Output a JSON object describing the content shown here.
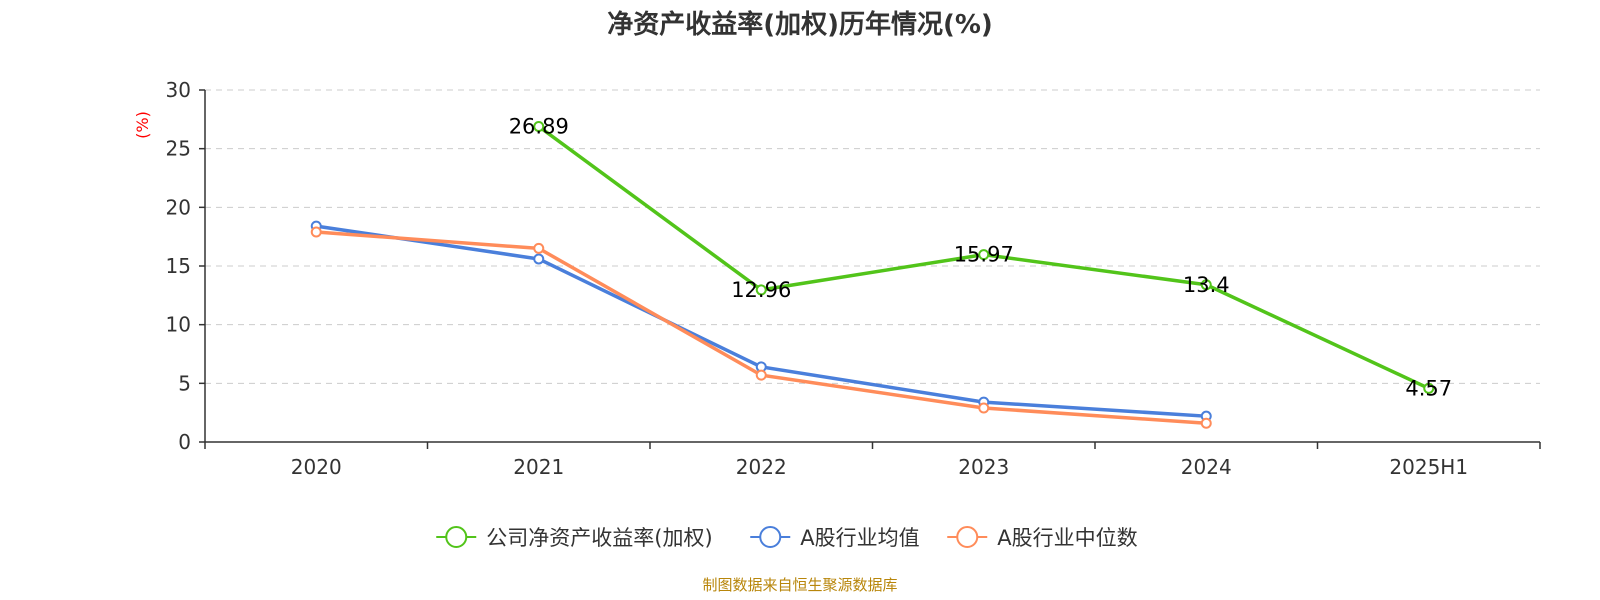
{
  "chart_data": {
    "type": "line",
    "title": "净资产收益率(加权)历年情况(%)",
    "ylabel": "(%)",
    "xlabel": "",
    "categories": [
      "2020",
      "2021",
      "2022",
      "2023",
      "2024",
      "2025H1"
    ],
    "ylim": [
      0,
      30
    ],
    "yticks": [
      0,
      5,
      10,
      15,
      20,
      25,
      30
    ],
    "grid": true,
    "legend_position": "bottom",
    "series": [
      {
        "name": "公司净资产收益率(加权)",
        "color": "#52c41a",
        "values": [
          null,
          26.89,
          12.96,
          15.97,
          13.4,
          4.57
        ],
        "labels": [
          "",
          "26.89",
          "12.96",
          "15.97",
          "13.4",
          "4.57"
        ],
        "show_labels": true
      },
      {
        "name": "A股行业均值",
        "color": "#4a7fdb",
        "values": [
          18.4,
          15.6,
          6.4,
          3.4,
          2.2,
          null
        ],
        "show_labels": false
      },
      {
        "name": "A股行业中位数",
        "color": "#ff8c5a",
        "values": [
          17.9,
          16.5,
          5.7,
          2.9,
          1.6,
          null
        ],
        "show_labels": false
      }
    ]
  },
  "source_text": "制图数据来自恒生聚源数据库"
}
